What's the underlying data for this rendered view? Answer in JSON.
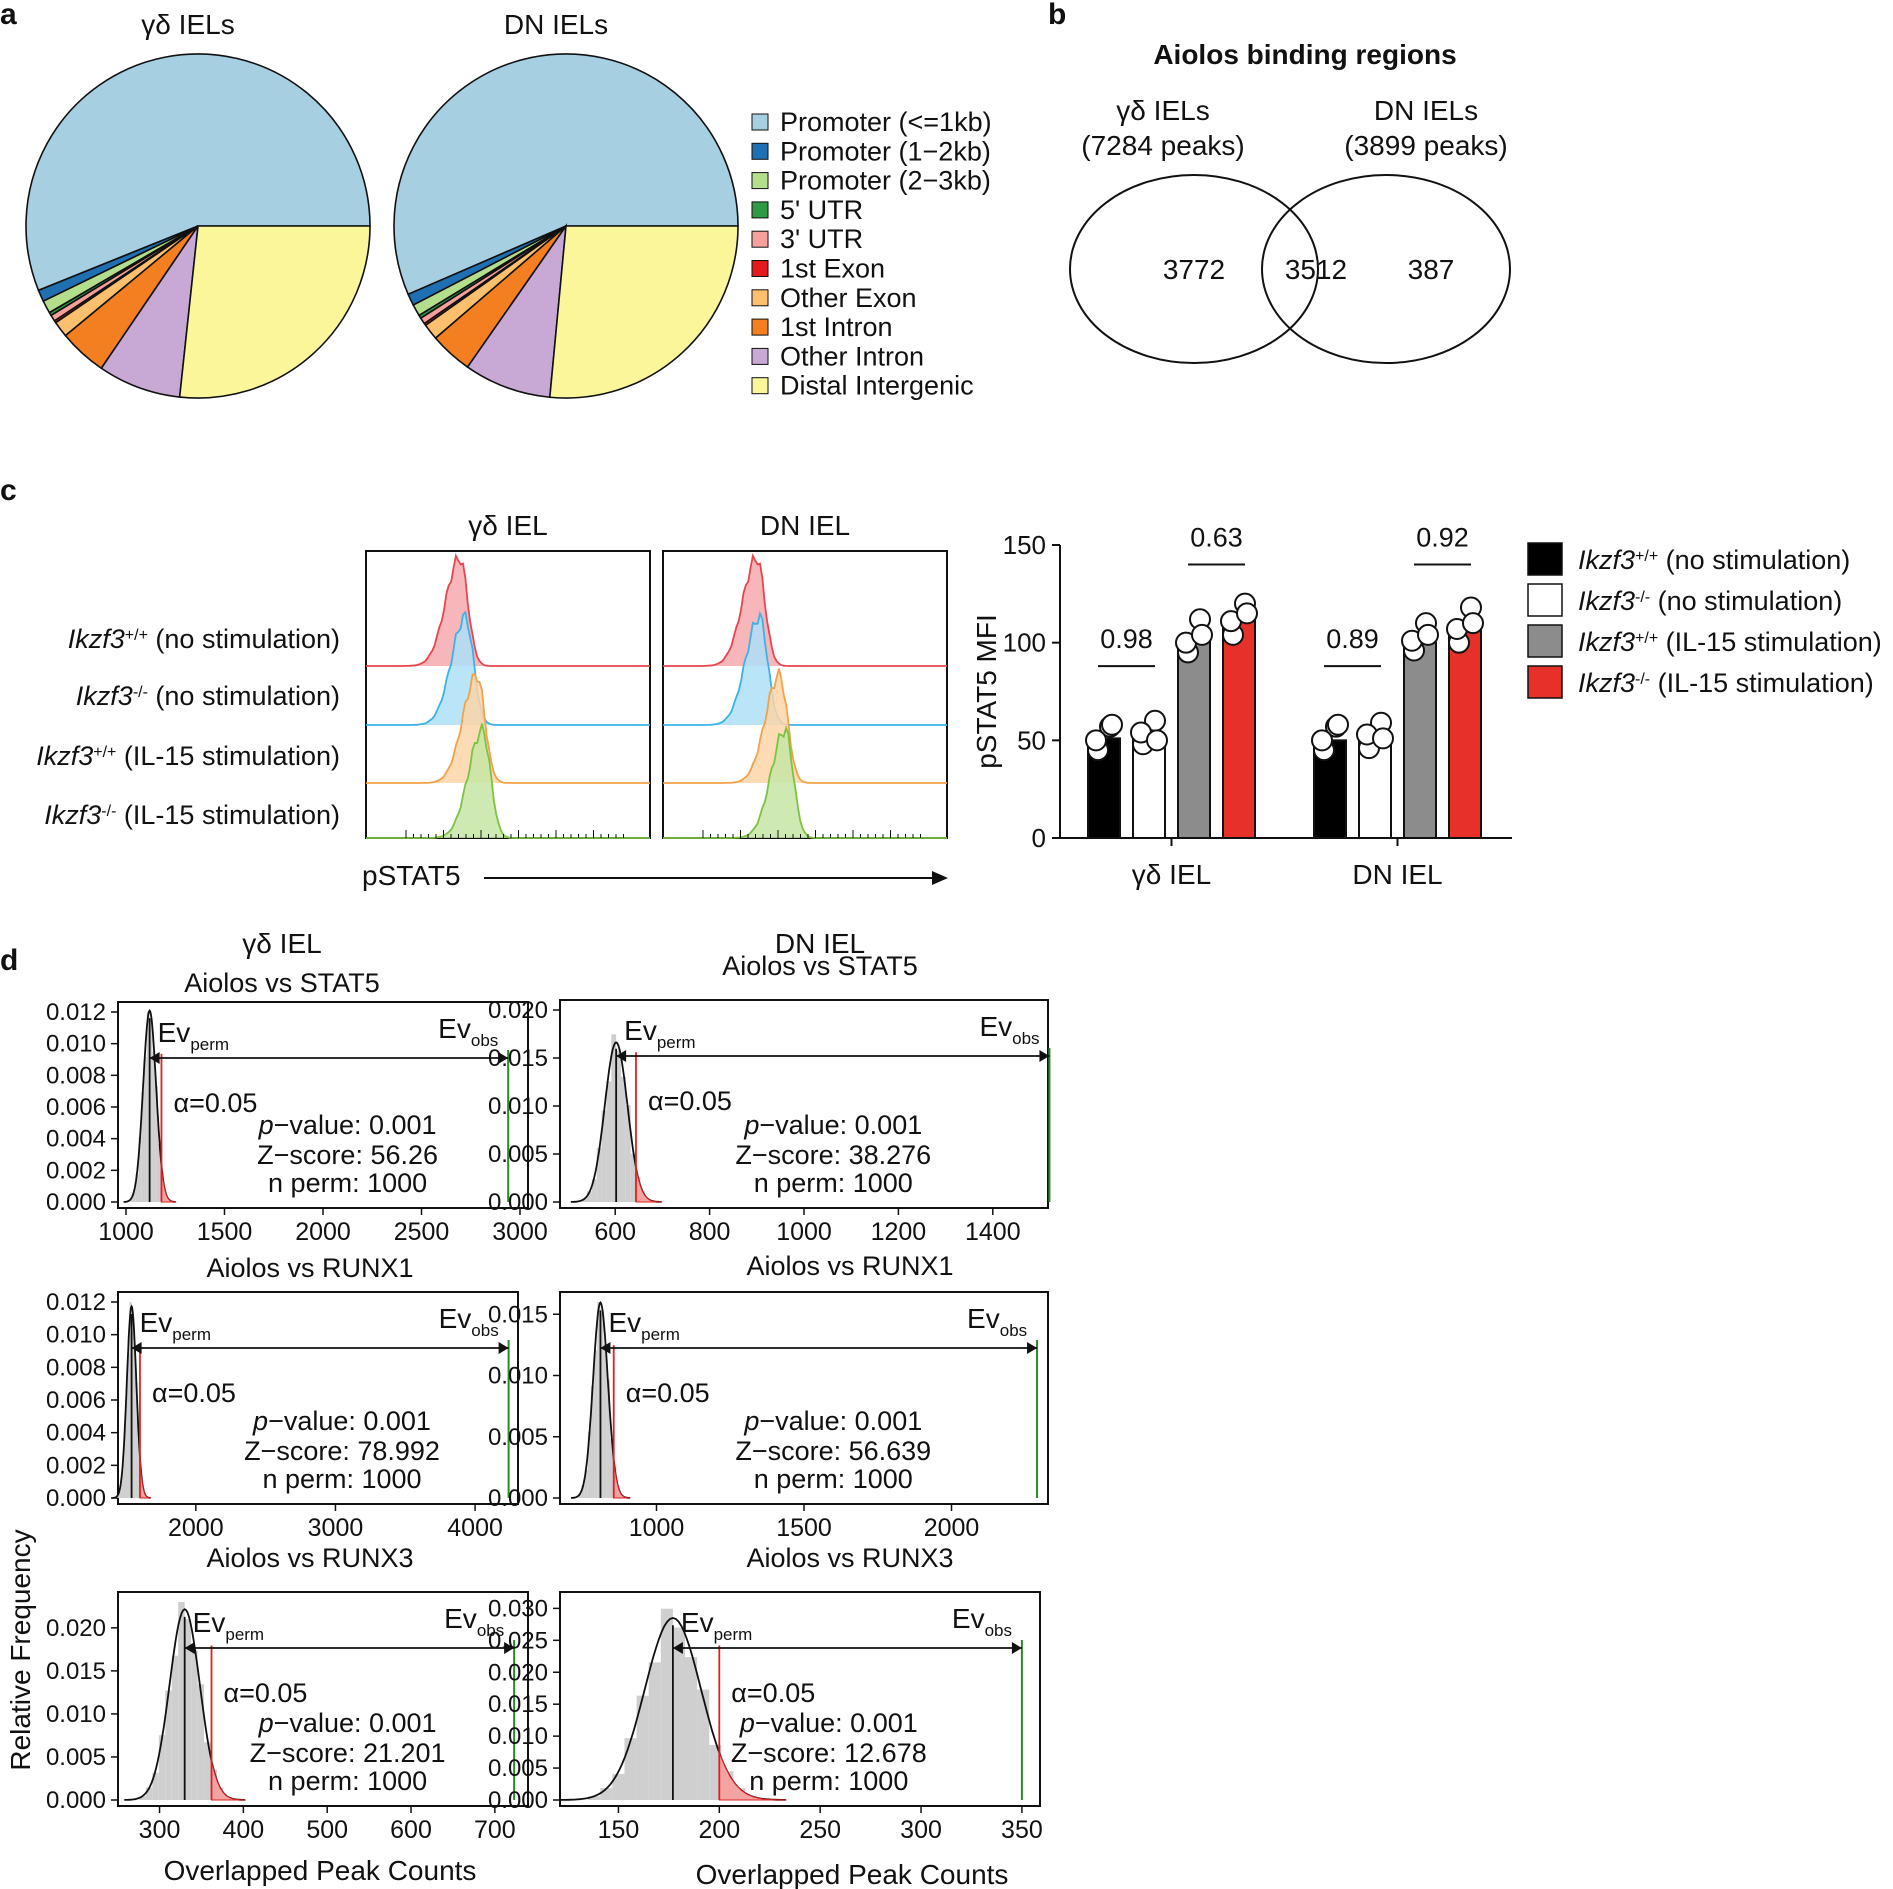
{
  "figure": {
    "panel_labels": [
      "a",
      "b",
      "c",
      "d"
    ]
  },
  "chart_data": [
    {
      "panel": "a",
      "type": "pie",
      "legend": {
        "items": [
          {
            "label": "Promoter (<=1kb)",
            "color": "#a7cfe2"
          },
          {
            "label": "Promoter (1−2kb)",
            "color": "#1f6fb3"
          },
          {
            "label": "Promoter (2−3kb)",
            "color": "#b3de8c"
          },
          {
            "label": "5' UTR",
            "color": "#2e9a45"
          },
          {
            "label": "3' UTR",
            "color": "#f5a09a"
          },
          {
            "label": "1st Exon",
            "color": "#e31a1c"
          },
          {
            "label": "Other Exon",
            "color": "#fbbf6e"
          },
          {
            "label": "1st Intron",
            "color": "#f47f20"
          },
          {
            "label": "Other Intron",
            "color": "#c8a9d6"
          },
          {
            "label": "Distal Intergenic",
            "color": "#fbf69a"
          }
        ],
        "position": "right"
      },
      "pies": [
        {
          "title": "γδ IELs",
          "values": [
            56.1,
            1.1,
            1.2,
            0.3,
            0.6,
            0.2,
            1.5,
            4.5,
            7.8,
            26.7
          ]
        },
        {
          "title": "DN IELs",
          "values": [
            56.5,
            1.1,
            1.1,
            0.3,
            0.6,
            0.2,
            1.5,
            4.0,
            8.2,
            26.5
          ]
        }
      ]
    },
    {
      "panel": "b",
      "type": "venn",
      "title": "Aiolos binding regions",
      "sets": [
        {
          "name": "γδ IELs",
          "count_label": "(7284 peaks)",
          "only": "3772"
        },
        {
          "name": "DN IELs",
          "count_label": "(3899 peaks)",
          "only": "387"
        }
      ],
      "overlap": "3512"
    },
    {
      "panel": "c-histograms",
      "type": "area",
      "xlabel": "pSTAT5",
      "columns": [
        "γδ IEL",
        "DN IEL"
      ],
      "rows": [
        {
          "gene": "Ikzf3",
          "sup": "+/+",
          "condition": "(no stimulation)",
          "color": "#e8454f",
          "fill": "#f6a9ad",
          "peak": [
            0.33,
            0.33
          ]
        },
        {
          "gene": "Ikzf3",
          "sup": "-/-",
          "condition": "(no stimulation)",
          "color": "#3cb2e8",
          "fill": "#aee0f7",
          "peak": [
            0.35,
            0.34
          ]
        },
        {
          "gene": "Ikzf3",
          "sup": "+/+",
          "condition": "(IL-15 stimulation)",
          "color": "#f3a14a",
          "fill": "#fbd5a8",
          "peak": [
            0.39,
            0.41
          ]
        },
        {
          "gene": "Ikzf3",
          "sup": "-/-",
          "condition": "(IL-15 stimulation)",
          "color": "#7dc242",
          "fill": "#c6e6a4",
          "peak": [
            0.41,
            0.43
          ]
        }
      ]
    },
    {
      "panel": "c-bars",
      "type": "bar",
      "ylabel": "pSTAT5 MFI",
      "ylim": [
        0,
        150
      ],
      "yticks": [
        "0",
        "50",
        "100",
        "150"
      ],
      "categories": [
        "γδ IEL",
        "DN IEL"
      ],
      "series": [
        {
          "name": "(no stimulation)",
          "gene": "Ikzf3",
          "sup": "+/+",
          "color": "#000000",
          "values": [
            51,
            50
          ],
          "points": [
            [
              45,
              57,
              50,
              58
            ],
            [
              45,
              57,
              50,
              58
            ]
          ]
        },
        {
          "name": "(no stimulation)",
          "gene": "Ikzf3",
          "sup": "-/-",
          "color": "#ffffff",
          "values": [
            52,
            52
          ],
          "points": [
            [
              48,
              60,
              54,
              50
            ],
            [
              46,
              59,
              53,
              51
            ]
          ]
        },
        {
          "name": "(IL-15 stimulation)",
          "gene": "Ikzf3",
          "sup": "+/+",
          "color": "#8c8c8c",
          "values": [
            101,
            100
          ],
          "points": [
            [
              95,
              112,
              100,
              104
            ],
            [
              96,
              110,
              101,
              104
            ]
          ]
        },
        {
          "name": "(IL-15 stimulation)",
          "gene": "Ikzf3",
          "sup": "-/-",
          "color": "#e8302a",
          "values": [
            113,
            108
          ],
          "points": [
            [
              104,
              120,
              111,
              115
            ],
            [
              100,
              118,
              107,
              110
            ]
          ]
        }
      ],
      "pvalues": [
        {
          "text": "0.98",
          "group": 0,
          "pair": [
            0,
            1
          ],
          "y": 88
        },
        {
          "text": "0.63",
          "group": 0,
          "pair": [
            2,
            3
          ],
          "y": 140
        },
        {
          "text": "0.89",
          "group": 1,
          "pair": [
            0,
            1
          ],
          "y": 88
        },
        {
          "text": "0.92",
          "group": 1,
          "pair": [
            2,
            3
          ],
          "y": 140
        }
      ]
    },
    {
      "panel": "d",
      "type": "histogram",
      "ylabel": "Relative Frequency",
      "xlabel": "Overlapped Peak Counts",
      "column_titles": [
        "γδ IEL",
        "DN IEL"
      ],
      "plots": [
        {
          "title": "Aiolos vs STAT5",
          "xlim": [
            1000,
            3000
          ],
          "xticks": [
            "1000",
            "1500",
            "2000",
            "2500",
            "3000"
          ],
          "ylim": [
            0,
            0.012
          ],
          "yticks": [
            "0.000",
            "0.002",
            "0.004",
            "0.006",
            "0.008",
            "0.010",
            "0.012"
          ],
          "mean": 1120,
          "sd": 33,
          "alpha_line": 1180,
          "ev_obs": 2940,
          "pvalue": "0.001",
          "zscore": "56.26",
          "nperm": "1000"
        },
        {
          "title": "Aiolos vs STAT5",
          "xlim": [
            500,
            1500
          ],
          "xticks": [
            "600",
            "800",
            "1000",
            "1200",
            "1400"
          ],
          "ylim": [
            0,
            0.02
          ],
          "yticks": [
            "0.000",
            "0.005",
            "0.010",
            "0.015",
            "0.020"
          ],
          "mean": 602,
          "sd": 24,
          "alpha_line": 644,
          "ev_obs": 1520,
          "pvalue": "0.001",
          "zscore": "38.276",
          "nperm": "1000"
        },
        {
          "title": "Aiolos vs RUNX1",
          "xlim": [
            1500,
            4250
          ],
          "xticks": [
            "2000",
            "3000",
            "4000"
          ],
          "ylim": [
            0,
            0.012
          ],
          "yticks": [
            "0.000",
            "0.002",
            "0.004",
            "0.006",
            "0.008",
            "0.010",
            "0.012"
          ],
          "mean": 1540,
          "sd": 34,
          "alpha_line": 1600,
          "ev_obs": 4240,
          "pvalue": "0.001",
          "zscore": "78.992",
          "nperm": "1000"
        },
        {
          "title": "Aiolos vs RUNX1",
          "xlim": [
            700,
            2300
          ],
          "xticks": [
            "1000",
            "1500",
            "2000"
          ],
          "ylim": [
            0,
            0.016
          ],
          "yticks": [
            "0.000",
            "0.005",
            "0.010",
            "0.015"
          ],
          "mean": 810,
          "sd": 25,
          "alpha_line": 855,
          "ev_obs": 2290,
          "pvalue": "0.001",
          "zscore": "56.639",
          "nperm": "1000"
        },
        {
          "title": "Aiolos vs RUNX3",
          "xlim": [
            260,
            730
          ],
          "xticks": [
            "300",
            "400",
            "500",
            "600",
            "700"
          ],
          "ylim": [
            0,
            0.023
          ],
          "yticks": [
            "0.000",
            "0.005",
            "0.010",
            "0.015",
            "0.020"
          ],
          "mean": 330,
          "sd": 18,
          "alpha_line": 362,
          "ev_obs": 723,
          "pvalue": "0.001",
          "zscore": "21.201",
          "nperm": "1000"
        },
        {
          "title": "Aiolos vs RUNX3",
          "xlim": [
            125,
            355
          ],
          "xticks": [
            "150",
            "200",
            "250",
            "300",
            "350"
          ],
          "ylim": [
            0,
            0.031
          ],
          "yticks": [
            "0.000",
            "0.005",
            "0.010",
            "0.015",
            "0.020",
            "0.025",
            "0.030"
          ],
          "mean": 177,
          "sd": 14,
          "alpha_line": 200,
          "ev_obs": 350,
          "pvalue": "0.001",
          "zscore": "12.678",
          "nperm": "1000"
        }
      ],
      "annotations": {
        "ev": "Ev",
        "perm": "perm",
        "obs": "obs",
        "alpha": "α=0.05",
        "pvalue_label": "p−value:",
        "zscore_label": "Z−score:",
        "nperm_label": "n perm:"
      }
    }
  ]
}
